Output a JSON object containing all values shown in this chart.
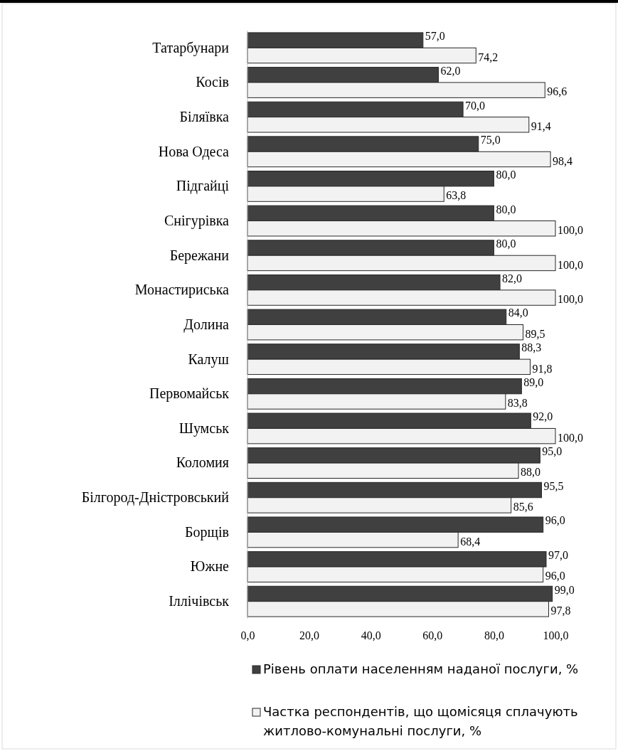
{
  "chart_data": {
    "type": "bar",
    "orientation": "horizontal",
    "categories": [
      "Татарбунари",
      "Косів",
      "Біляївка",
      "Нова Одеса",
      "Підгайці",
      "Снігурівка",
      "Бережани",
      "Монастириська",
      "Долина",
      "Калуш",
      "Первомайськ",
      "Шумськ",
      "Коломия",
      "Білгород-Дністровський",
      "Борщів",
      "Южне",
      "Іллічівськ"
    ],
    "series": [
      {
        "name": "Рівень оплати населенням наданої послуги, %",
        "color": "#404040",
        "values": [
          57,
          62,
          70,
          75,
          80,
          80,
          80,
          82,
          84,
          88.3,
          89,
          92,
          95,
          95.5,
          96,
          97,
          99
        ],
        "value_labels": [
          "57,0",
          "62,0",
          "70,0",
          "75,0",
          "80,0",
          "80,0",
          "80,0",
          "82,0",
          "84,0",
          "88,3",
          "89,0",
          "92,0",
          "95,0",
          "95,5",
          "96,0",
          "97,0",
          "99,0"
        ]
      },
      {
        "name": "Частка респондентів, що щомісяця сплачують житлово-комунальні послуги, %",
        "color": "#f2f2f2",
        "values": [
          74.2,
          96.6,
          91.4,
          98.4,
          63.8,
          100,
          100,
          100,
          89.5,
          91.8,
          83.8,
          100,
          88,
          85.6,
          68.4,
          96,
          97.8
        ],
        "value_labels": [
          "74,2",
          "96,6",
          "91,4",
          "98,4",
          "63,8",
          "100,0",
          "100,0",
          "100,0",
          "89,5",
          "91,8",
          "83,8",
          "100,0",
          "88,0",
          "85,6",
          "68,4",
          "96,0",
          "97,8"
        ]
      }
    ],
    "xlim": [
      0,
      100
    ],
    "xticks": [
      {
        "value": 0,
        "label": "0,0"
      },
      {
        "value": 20,
        "label": "20,0"
      },
      {
        "value": 40,
        "label": "40,0"
      },
      {
        "value": 60,
        "label": "60,0"
      },
      {
        "value": 80,
        "label": "80,0"
      },
      {
        "value": 100,
        "label": "100,0"
      }
    ],
    "grid": false,
    "legend": "bottom"
  }
}
